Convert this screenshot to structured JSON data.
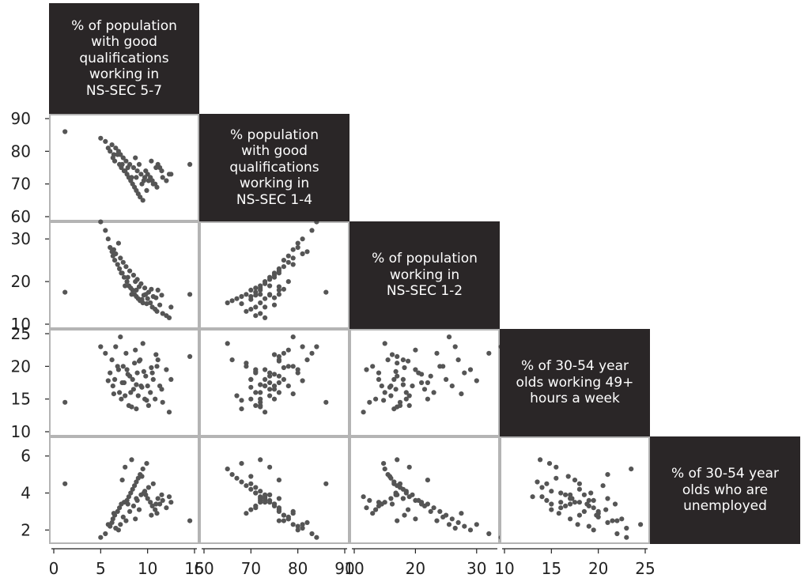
{
  "chart_data": {
    "type": "scatter",
    "title": "",
    "variables": [
      {
        "label": "% of population\nwith good\nqualifications\nworking in\nNS-SEC 5-7",
        "ticks": [
          "0",
          "5",
          "10",
          "15"
        ],
        "range": [
          0,
          15
        ]
      },
      {
        "label": "% population\nwith good\nqualifications\nworking in\nNS-SEC 1-4",
        "ticks": [
          "60",
          "70",
          "80",
          "90"
        ],
        "range": [
          60,
          90
        ]
      },
      {
        "label": "% of population\nworking in\nNS-SEC 1-2",
        "ticks": [
          "10",
          "20",
          "30"
        ],
        "range": [
          10,
          33
        ]
      },
      {
        "label": "% of 30-54 year\nolds working 49+\nhours a week",
        "ticks": [
          "10",
          "15",
          "20",
          "25"
        ],
        "range": [
          10,
          25
        ]
      },
      {
        "label": "% of 30-54 year\nolds who are\nunemployed",
        "ticks": [
          "2",
          "4",
          "6"
        ],
        "range": [
          1.5,
          6.8
        ]
      }
    ],
    "observations": [
      [
        1.2,
        86,
        17.5,
        14.5,
        4.5
      ],
      [
        14.5,
        76,
        17,
        21.5,
        2.5
      ],
      [
        5,
        84,
        34,
        23,
        1.6
      ],
      [
        5.5,
        83,
        32,
        22,
        1.8
      ],
      [
        6,
        80,
        28,
        19,
        2.2
      ],
      [
        6.3,
        78,
        26,
        17,
        2.6
      ],
      [
        6.5,
        77,
        25,
        18,
        2.8
      ],
      [
        6.8,
        79,
        24,
        20,
        3
      ],
      [
        7,
        76,
        23,
        16,
        3.2
      ],
      [
        7.2,
        75,
        22,
        15,
        3.4
      ],
      [
        7.5,
        74,
        21,
        17.5,
        3.5
      ],
      [
        7.8,
        73,
        20,
        19.5,
        3.6
      ],
      [
        8,
        72,
        19,
        14,
        3.8
      ],
      [
        8.2,
        71,
        18.5,
        16,
        4
      ],
      [
        8.4,
        70,
        18,
        18,
        4.2
      ],
      [
        8.6,
        69,
        17,
        20.5,
        4.4
      ],
      [
        8.8,
        68,
        16.5,
        13.5,
        4.6
      ],
      [
        9,
        67,
        16,
        15.5,
        4.8
      ],
      [
        9.2,
        66,
        15.5,
        21,
        5
      ],
      [
        9.5,
        65,
        15,
        23.5,
        5.3
      ],
      [
        9.8,
        74,
        17,
        18.5,
        3.9
      ],
      [
        10,
        73,
        16,
        17,
        3.7
      ],
      [
        10.3,
        72,
        15,
        16,
        3.5
      ],
      [
        10.5,
        71,
        14,
        19,
        3.3
      ],
      [
        10.8,
        70,
        13.5,
        15,
        3.1
      ],
      [
        11,
        69,
        13,
        20,
        2.9
      ],
      [
        11.3,
        75,
        14.5,
        17,
        3.4
      ],
      [
        11.6,
        72,
        12.5,
        14.5,
        3.6
      ],
      [
        12,
        71,
        12,
        19.5,
        3.2
      ],
      [
        12.3,
        73,
        11.5,
        13,
        3.8
      ],
      [
        6.2,
        82,
        27,
        21,
        2.4
      ],
      [
        6.6,
        81,
        26.5,
        23,
        2.1
      ],
      [
        7.1,
        79,
        25.5,
        24.5,
        2.3
      ],
      [
        7.4,
        78,
        24.5,
        20,
        2.7
      ],
      [
        7.7,
        77,
        23.5,
        22,
        2.5
      ],
      [
        8.1,
        76,
        22.5,
        18.5,
        3
      ],
      [
        8.5,
        75,
        21.5,
        16.5,
        3.3
      ],
      [
        8.9,
        74,
        20.5,
        19,
        3.6
      ],
      [
        9.3,
        73,
        19.5,
        17,
        3.9
      ],
      [
        9.7,
        72,
        18.5,
        15,
        4.1
      ],
      [
        10.1,
        71,
        17.5,
        14,
        4.3
      ],
      [
        10.6,
        70,
        16.5,
        18,
        4.5
      ],
      [
        11.1,
        76,
        18,
        21,
        3.7
      ],
      [
        11.5,
        74,
        16.8,
        16.5,
        3.9
      ],
      [
        12.5,
        73,
        14,
        18,
        3.5
      ],
      [
        6.9,
        80,
        29,
        19.5,
        2
      ],
      [
        7.3,
        76,
        22,
        17.5,
        4.7
      ],
      [
        7.6,
        74,
        19,
        15.5,
        5.4
      ],
      [
        8.3,
        72,
        17,
        13.8,
        5.8
      ],
      [
        8.7,
        78,
        20,
        22.5,
        2.6
      ],
      [
        9.1,
        76,
        18.8,
        20.8,
        3.1
      ],
      [
        9.4,
        70,
        15.8,
        16.8,
        4.9
      ],
      [
        9.9,
        68,
        14.8,
        14.8,
        5.6
      ],
      [
        10.4,
        77,
        18.2,
        19.8,
        2.8
      ],
      [
        10.9,
        75,
        16.2,
        21.8,
        3.4
      ],
      [
        5.8,
        81,
        30,
        17.8,
        2.3
      ],
      [
        6.4,
        79,
        27.5,
        15.8,
        2.9
      ],
      [
        7.9,
        75,
        21,
        18.8,
        3.4
      ],
      [
        8.8,
        72,
        18,
        17.2,
        3.7
      ],
      [
        9.6,
        71,
        16.8,
        19.2,
        4
      ]
    ]
  }
}
